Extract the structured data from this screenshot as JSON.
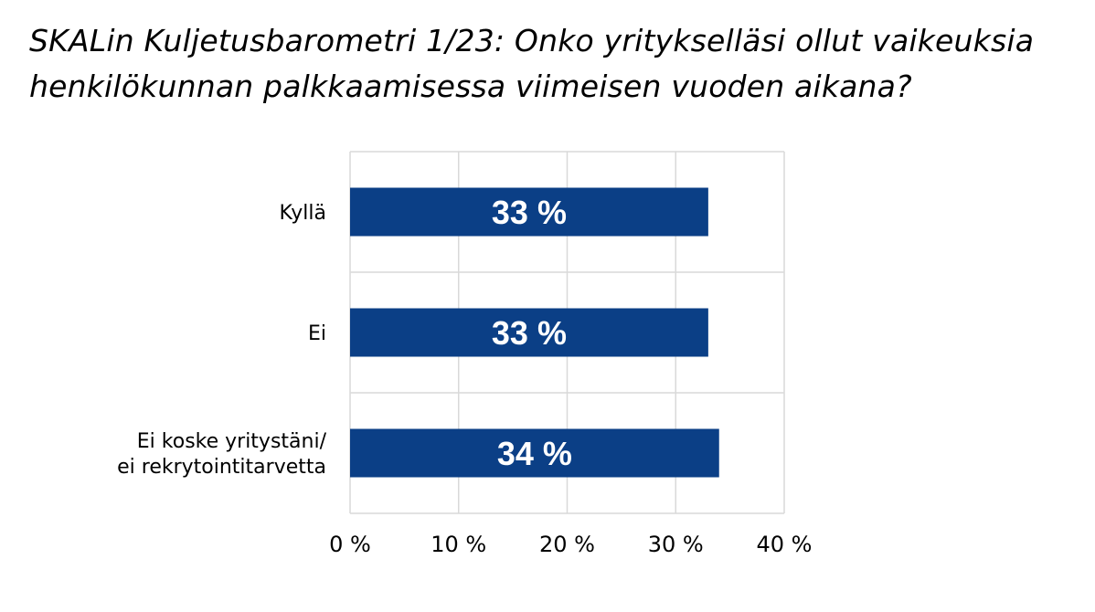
{
  "title": {
    "line1": "SKALin Kuljetusbarometri 1/23: Onko yritykselläsi ollut vaikeuksia",
    "line2": "henkilökunnan palkkaamisessa viimeisen vuoden aikana?"
  },
  "colors": {
    "bar": "#0b3f86",
    "grid": "#d9d9d9",
    "label": "#ffffff"
  },
  "chart_data": {
    "type": "bar",
    "orientation": "horizontal",
    "categories": [
      [
        "Kyllä"
      ],
      [
        "Ei"
      ],
      [
        "Ei koske yritystäni/",
        "ei rekrytointitarvetta"
      ]
    ],
    "values": [
      33,
      33,
      34
    ],
    "data_labels": [
      "33 %",
      "33 %",
      "34 %"
    ],
    "xlim": [
      0,
      40
    ],
    "xticks": [
      0,
      10,
      20,
      30,
      40
    ],
    "xtick_labels": [
      "0 %",
      "10 %",
      "20 %",
      "30 %",
      "40 %"
    ],
    "grid": true,
    "legend": "none"
  }
}
